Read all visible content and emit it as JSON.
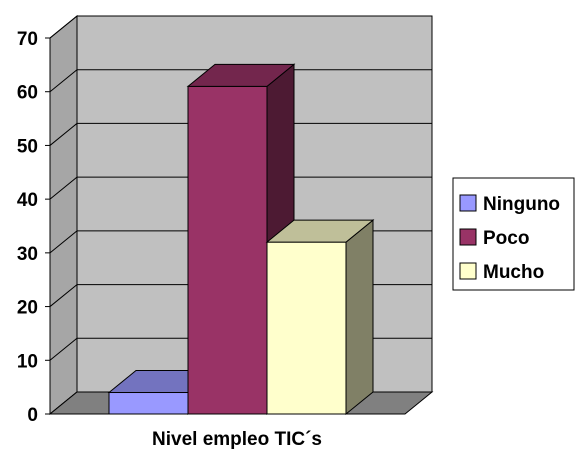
{
  "chart_data": {
    "type": "bar",
    "title": "",
    "xlabel": "Nivel empleo TIC´s",
    "ylabel": "",
    "ylim": [
      0,
      70
    ],
    "yticks": [
      0,
      10,
      20,
      30,
      40,
      50,
      60,
      70
    ],
    "grid": true,
    "three_d": true,
    "legend_position": "right",
    "series": [
      {
        "name": "Ninguno",
        "value": 4,
        "color": "#9999FF"
      },
      {
        "name": "Poco",
        "value": 61,
        "color": "#993366"
      },
      {
        "name": "Mucho",
        "value": 32,
        "color": "#FFFFCC"
      }
    ],
    "colors": {
      "wall": "#C0C0C0",
      "floor": "#808080",
      "wall_side": "#A6A6A6",
      "gridline": "#000000"
    }
  }
}
